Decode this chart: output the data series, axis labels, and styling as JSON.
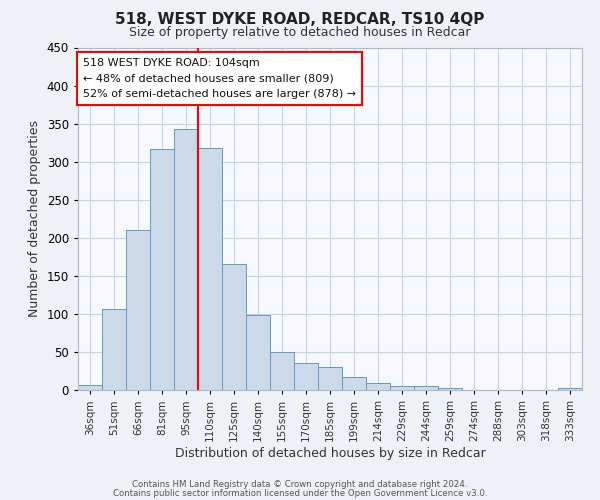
{
  "title": "518, WEST DYKE ROAD, REDCAR, TS10 4QP",
  "subtitle": "Size of property relative to detached houses in Redcar",
  "xlabel": "Distribution of detached houses by size in Redcar",
  "ylabel": "Number of detached properties",
  "bar_color": "#ccd9e8",
  "bar_edge_color": "#6699bb",
  "grid_color": "#c5d5e5",
  "bin_labels": [
    "36sqm",
    "51sqm",
    "66sqm",
    "81sqm",
    "95sqm",
    "110sqm",
    "125sqm",
    "140sqm",
    "155sqm",
    "170sqm",
    "185sqm",
    "199sqm",
    "214sqm",
    "229sqm",
    "244sqm",
    "259sqm",
    "274sqm",
    "288sqm",
    "303sqm",
    "318sqm",
    "333sqm"
  ],
  "bar_heights": [
    7,
    106,
    210,
    317,
    343,
    318,
    165,
    98,
    50,
    36,
    30,
    17,
    9,
    5,
    5,
    3,
    0,
    0,
    0,
    0,
    3
  ],
  "ylim": [
    0,
    450
  ],
  "yticks": [
    0,
    50,
    100,
    150,
    200,
    250,
    300,
    350,
    400,
    450
  ],
  "red_line_x": 4.5,
  "annotation_line1": "518 WEST DYKE ROAD: 104sqm",
  "annotation_line2": "← 48% of detached houses are smaller (809)",
  "annotation_line3": "52% of semi-detached houses are larger (878) →",
  "footer_line1": "Contains HM Land Registry data © Crown copyright and database right 2024.",
  "footer_line2": "Contains public sector information licensed under the Open Government Licence v3.0.",
  "background_color": "#eef2f7",
  "plot_background_color": "#f5f8fc"
}
